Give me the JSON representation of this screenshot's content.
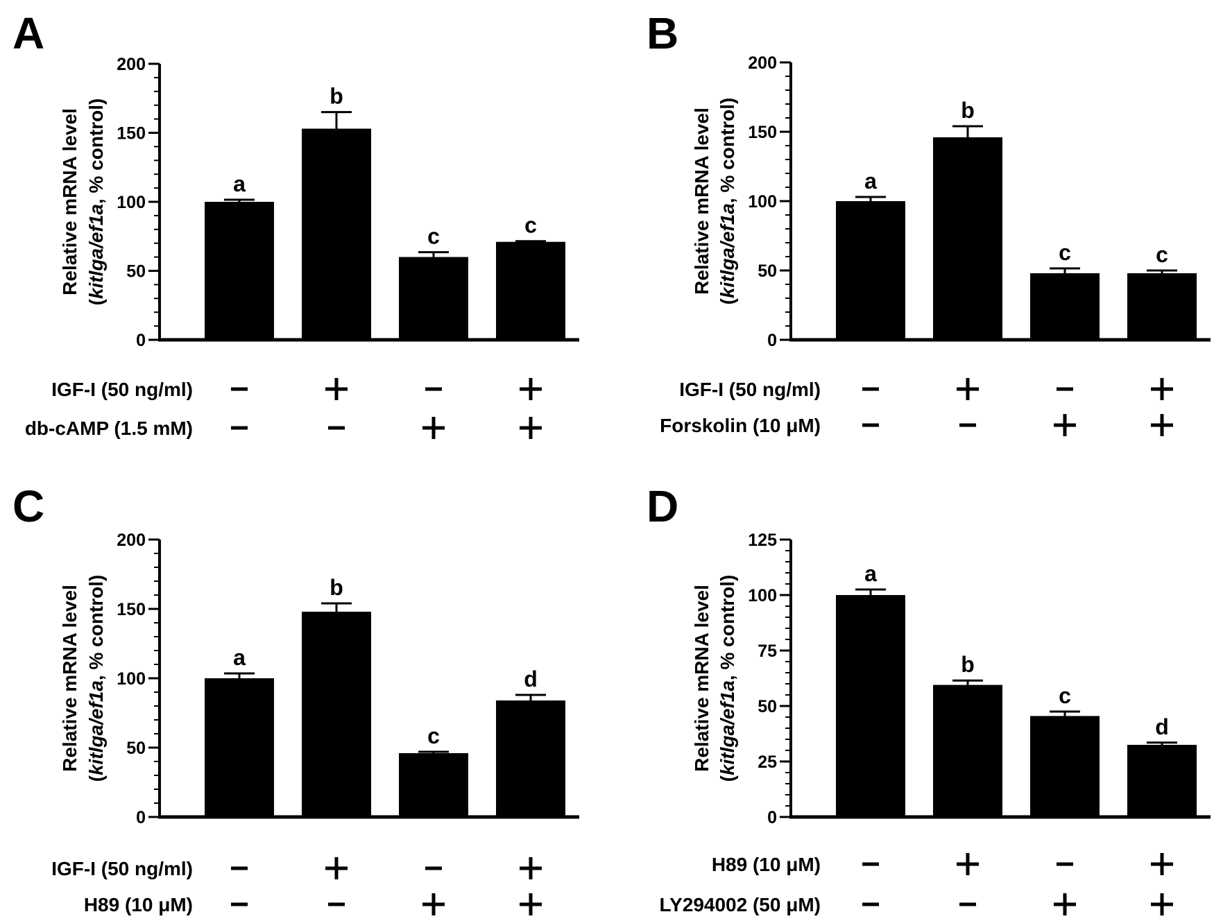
{
  "colors": {
    "bar": "#000000",
    "background": "#ffffff",
    "text": "#000000"
  },
  "chart_data": [
    {
      "panel": "A",
      "type": "bar",
      "ylabel": "Relative mRNA level",
      "ylabel2": {
        "pre": "(",
        "italic": "kitlga/ef1a",
        "post": ", % control)"
      },
      "ylim": [
        0,
        200
      ],
      "yticks": [
        "0",
        "50",
        "100",
        "150",
        "200"
      ],
      "values": [
        100,
        153,
        60,
        71
      ],
      "errors": [
        1.5,
        12,
        3.5,
        0.5
      ],
      "letters": [
        "a",
        "b",
        "c",
        "c"
      ],
      "treatments": [
        {
          "label": "IGF-I (50 ng/ml)",
          "signs": [
            "-",
            "+",
            "-",
            "+"
          ]
        },
        {
          "label": "db-cAMP (1.5 mM)",
          "signs": [
            "-",
            "-",
            "+",
            "+"
          ]
        }
      ]
    },
    {
      "panel": "B",
      "type": "bar",
      "ylabel": "Relative mRNA level",
      "ylabel2": {
        "pre": "(",
        "italic": "kitlga/ef1a",
        "post": ", % control)"
      },
      "ylim": [
        0,
        200
      ],
      "yticks": [
        "0",
        "50",
        "100",
        "150",
        "200"
      ],
      "values": [
        100,
        146,
        48,
        48
      ],
      "errors": [
        3,
        8,
        3.5,
        2
      ],
      "letters": [
        "a",
        "b",
        "c",
        "c"
      ],
      "treatments": [
        {
          "label": "IGF-I (50 ng/ml)",
          "signs": [
            "-",
            "+",
            "-",
            "+"
          ]
        },
        {
          "label": "Forskolin (10 μM)",
          "signs": [
            "-",
            "-",
            "+",
            "+"
          ]
        }
      ]
    },
    {
      "panel": "C",
      "type": "bar",
      "ylabel": "Relative mRNA level",
      "ylabel2": {
        "pre": "(",
        "italic": "kitlga/ef1a",
        "post": ", % control)"
      },
      "ylim": [
        0,
        200
      ],
      "yticks": [
        "0",
        "50",
        "100",
        "150",
        "200"
      ],
      "values": [
        100,
        148,
        46,
        84
      ],
      "errors": [
        3.5,
        6,
        1,
        4
      ],
      "letters": [
        "a",
        "b",
        "c",
        "d"
      ],
      "treatments": [
        {
          "label": "IGF-I (50 ng/ml)",
          "signs": [
            "-",
            "+",
            "-",
            "+"
          ]
        },
        {
          "label": "H89 (10 μM)",
          "signs": [
            "-",
            "-",
            "+",
            "+"
          ]
        }
      ]
    },
    {
      "panel": "D",
      "type": "bar",
      "ylabel": "Relative mRNA level",
      "ylabel2": {
        "pre": "(",
        "italic": "kitlga/ef1a",
        "post": ", % control)"
      },
      "ylim": [
        0,
        125
      ],
      "yticks": [
        "0",
        "25",
        "50",
        "75",
        "100",
        "125"
      ],
      "values": [
        100,
        59.5,
        45.5,
        32.5
      ],
      "errors": [
        2.5,
        2,
        2,
        1
      ],
      "letters": [
        "a",
        "b",
        "c",
        "d"
      ],
      "treatments": [
        {
          "label": "H89 (10 μM)",
          "signs": [
            "-",
            "+",
            "-",
            "+"
          ]
        },
        {
          "label": "LY294002 (50 μM)",
          "signs": [
            "-",
            "-",
            "+",
            "+"
          ]
        }
      ]
    }
  ]
}
